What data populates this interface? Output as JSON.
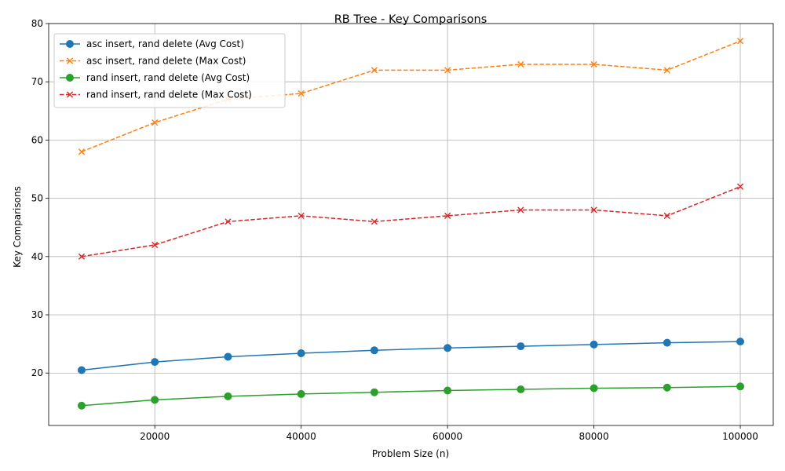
{
  "chart_data": {
    "type": "line",
    "title": "RB Tree - Key Comparisons",
    "xlabel": "Problem Size (n)",
    "ylabel": "Key Comparisons",
    "x": [
      10000,
      20000,
      30000,
      40000,
      50000,
      60000,
      70000,
      80000,
      90000,
      100000
    ],
    "xlim": [
      5500,
      104500
    ],
    "ylim": [
      11,
      80
    ],
    "xticks": [
      20000,
      40000,
      60000,
      80000,
      100000
    ],
    "yticks": [
      20,
      30,
      40,
      50,
      60,
      70,
      80
    ],
    "grid": true,
    "legend_position": "top-left",
    "series": [
      {
        "name": "asc insert, rand delete (Avg Cost)",
        "color": "#1f77b4",
        "marker": "circle",
        "dash": "solid",
        "values": [
          20.5,
          21.9,
          22.8,
          23.4,
          23.9,
          24.3,
          24.6,
          24.9,
          25.2,
          25.4
        ]
      },
      {
        "name": "asc insert, rand delete (Max Cost)",
        "color": "#ff7f0e",
        "marker": "x",
        "dash": "dashed",
        "values": [
          58,
          63,
          67,
          68,
          72,
          72,
          73,
          73,
          72,
          77
        ]
      },
      {
        "name": "rand insert, rand delete (Avg Cost)",
        "color": "#2ca02c",
        "marker": "circle",
        "dash": "solid",
        "values": [
          14.4,
          15.4,
          16.0,
          16.4,
          16.7,
          17.0,
          17.2,
          17.4,
          17.5,
          17.7
        ]
      },
      {
        "name": "rand insert, rand delete (Max Cost)",
        "color": "#d62728",
        "marker": "x",
        "dash": "dashed",
        "values": [
          40,
          42,
          46,
          47,
          46,
          47,
          48,
          48,
          47,
          52
        ]
      }
    ]
  }
}
